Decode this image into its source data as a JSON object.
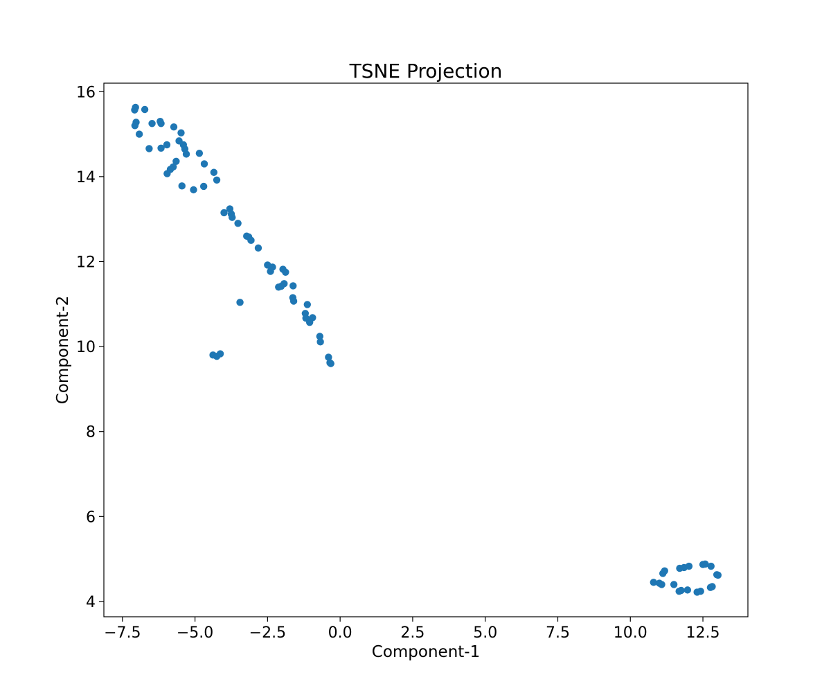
{
  "chart_data": {
    "type": "scatter",
    "title": "TSNE Projection",
    "xlabel": "Component-1",
    "ylabel": "Component-2",
    "xlim": [
      -8.14,
      14.05
    ],
    "ylim": [
      3.64,
      16.2
    ],
    "x_ticks": [
      -7.5,
      -5.0,
      -2.5,
      0.0,
      2.5,
      5.0,
      7.5,
      10.0,
      12.5
    ],
    "x_tick_labels": [
      "−7.5",
      "−5.0",
      "−2.5",
      "0.0",
      "2.5",
      "5.0",
      "7.5",
      "10.0",
      "12.5"
    ],
    "y_ticks": [
      4,
      6,
      8,
      10,
      12,
      14,
      16
    ],
    "y_tick_labels": [
      "4",
      "6",
      "8",
      "10",
      "12",
      "14",
      "16"
    ],
    "grid": false,
    "marker_color": "#1f77b4",
    "series": [
      {
        "points": [
          [
            -7.05,
            15.63
          ],
          [
            -7.08,
            15.57
          ],
          [
            -6.73,
            15.58
          ],
          [
            -7.03,
            15.28
          ],
          [
            -7.07,
            15.2
          ],
          [
            -6.92,
            15.0
          ],
          [
            -6.48,
            15.25
          ],
          [
            -6.2,
            15.3
          ],
          [
            -6.17,
            15.25
          ],
          [
            -5.73,
            15.17
          ],
          [
            -5.48,
            15.03
          ],
          [
            -5.55,
            14.84
          ],
          [
            -5.4,
            14.75
          ],
          [
            -5.35,
            14.65
          ],
          [
            -5.3,
            14.53
          ],
          [
            -6.58,
            14.66
          ],
          [
            -6.17,
            14.67
          ],
          [
            -5.97,
            14.75
          ],
          [
            -5.65,
            14.36
          ],
          [
            -5.75,
            14.23
          ],
          [
            -5.85,
            14.17
          ],
          [
            -5.96,
            14.07
          ],
          [
            -4.85,
            14.55
          ],
          [
            -4.68,
            14.3
          ],
          [
            -4.35,
            14.1
          ],
          [
            -4.25,
            13.92
          ],
          [
            -5.45,
            13.78
          ],
          [
            -5.05,
            13.69
          ],
          [
            -4.7,
            13.77
          ],
          [
            -3.8,
            13.24
          ],
          [
            -4.0,
            13.15
          ],
          [
            -3.75,
            13.12
          ],
          [
            -3.72,
            13.04
          ],
          [
            -3.52,
            12.9
          ],
          [
            -3.22,
            12.6
          ],
          [
            -3.15,
            12.58
          ],
          [
            -3.07,
            12.5
          ],
          [
            -2.82,
            12.32
          ],
          [
            -2.5,
            11.92
          ],
          [
            -2.33,
            11.87
          ],
          [
            -2.4,
            11.77
          ],
          [
            -1.97,
            11.82
          ],
          [
            -1.88,
            11.75
          ],
          [
            -1.93,
            11.48
          ],
          [
            -2.03,
            11.42
          ],
          [
            -2.12,
            11.4
          ],
          [
            -1.62,
            11.43
          ],
          [
            -1.63,
            11.15
          ],
          [
            -1.6,
            11.07
          ],
          [
            -1.13,
            10.99
          ],
          [
            -1.2,
            10.78
          ],
          [
            -1.18,
            10.67
          ],
          [
            -0.95,
            10.68
          ],
          [
            -1.05,
            10.57
          ],
          [
            -0.7,
            10.24
          ],
          [
            -0.68,
            10.11
          ],
          [
            -0.4,
            9.75
          ],
          [
            -0.35,
            9.62
          ],
          [
            -0.32,
            9.6
          ],
          [
            -3.45,
            11.04
          ],
          [
            -4.38,
            9.8
          ],
          [
            -4.25,
            9.77
          ],
          [
            -4.13,
            9.83
          ],
          [
            10.8,
            4.45
          ],
          [
            11.0,
            4.43
          ],
          [
            11.08,
            4.4
          ],
          [
            11.12,
            4.66
          ],
          [
            11.18,
            4.72
          ],
          [
            11.5,
            4.4
          ],
          [
            11.7,
            4.78
          ],
          [
            11.85,
            4.8
          ],
          [
            12.02,
            4.83
          ],
          [
            11.68,
            4.24
          ],
          [
            11.75,
            4.26
          ],
          [
            11.97,
            4.27
          ],
          [
            12.3,
            4.22
          ],
          [
            12.42,
            4.24
          ],
          [
            12.5,
            4.87
          ],
          [
            12.58,
            4.88
          ],
          [
            12.78,
            4.83
          ],
          [
            12.76,
            4.33
          ],
          [
            12.82,
            4.35
          ],
          [
            12.98,
            4.63
          ],
          [
            13.02,
            4.62
          ]
        ]
      }
    ]
  }
}
